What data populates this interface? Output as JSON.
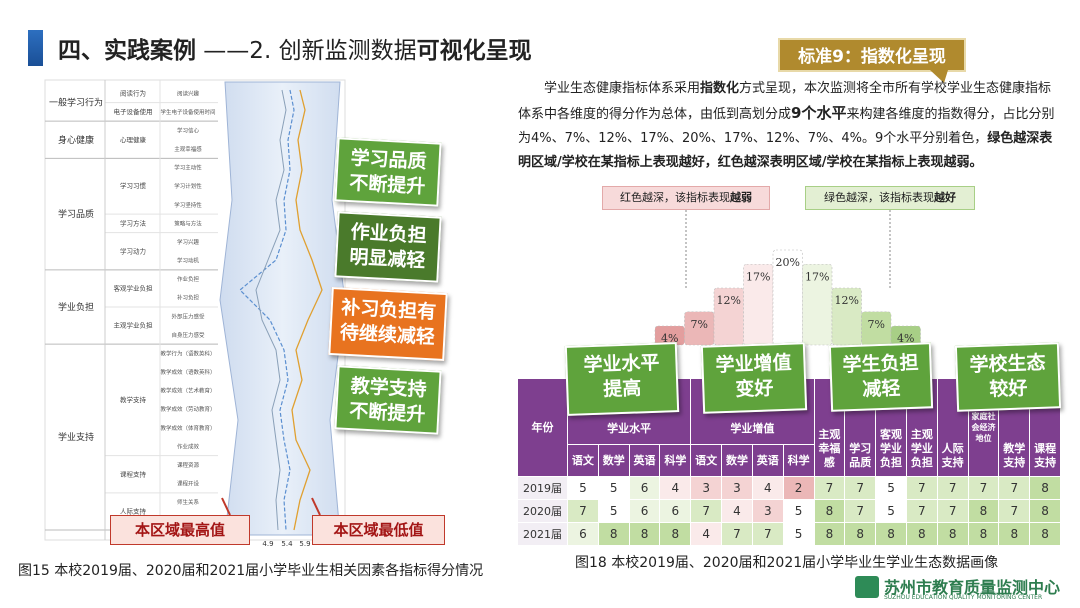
{
  "header": {
    "title_parts": [
      "四、实践案例",
      " ——2. 创新监测数据",
      "可视化呈现"
    ]
  },
  "left_panel": {
    "groups": [
      {
        "name": "一般学习行为",
        "subgroups": [
          {
            "name": "阅读行为",
            "items": [
              "阅读兴趣"
            ]
          },
          {
            "name": "电子设备使用",
            "items": [
              "学生电子设备使用时间"
            ]
          }
        ]
      },
      {
        "name": "身心健康",
        "subgroups": [
          {
            "name": "心理健康",
            "items": [
              "学习信心",
              "主观幸福感"
            ]
          }
        ]
      },
      {
        "name": "学习品质",
        "subgroups": [
          {
            "name": "学习习惯",
            "items": [
              "学习主动性",
              "学习计划性",
              "学习坚持性"
            ]
          },
          {
            "name": "学习方法",
            "items": [
              "策略与方法"
            ]
          },
          {
            "name": "学习动力",
            "items": [
              "学习兴趣",
              "学习动机"
            ]
          }
        ]
      },
      {
        "name": "学业负担",
        "subgroups": [
          {
            "name": "客观学业负担",
            "items": [
              "作业负担",
              "补习负担"
            ]
          },
          {
            "name": "主观学业负担",
            "items": [
              "外部压力感受",
              "自身压力感受"
            ]
          }
        ]
      },
      {
        "name": "学业支持",
        "subgroups": [
          {
            "name": "教学支持",
            "items": [
              "教学行为（语数英科）",
              "教学成效（语数英科）",
              "教学成效（艺术教育）",
              "教学成效（劳动教育）",
              "教学成效（体育教育）",
              "作业成效"
            ]
          },
          {
            "name": "课程支持",
            "items": [
              "课程资源",
              "课程开设"
            ]
          },
          {
            "name": "人际支持",
            "items": [
              "师生关系",
              "同伴关系"
            ]
          }
        ]
      }
    ],
    "x_ticks": [
      4.9,
      5.4,
      5.9
    ],
    "callouts": [
      [
        "学习品质",
        "不断提升"
      ],
      [
        "作业负担",
        "明显减轻"
      ],
      [
        "补习负担有",
        "待继续减轻"
      ],
      [
        "教学支持",
        "不断提升"
      ]
    ],
    "range_labels": [
      "本区域最高值",
      "本区域最低值"
    ],
    "caption": "图15  本校2019届、2020届和2021届小学毕业生相关因素各指标得分情况"
  },
  "right_panel": {
    "tag": "标准9：指数化呈现",
    "paragraph": [
      {
        "text": "学业生态健康指标体系采用",
        "bold": false
      },
      {
        "text": "指数化",
        "bold": true
      },
      {
        "text": "方式呈现，本次监测将全市所有学校学业生态健康指标体系中各维度的得分作为总体，由低到高划分成",
        "bold": false
      },
      {
        "text": "9个水平",
        "bold": true
      },
      {
        "text": "来构建各维度的指数得分，占比分别为4%、7%、12%、17%、20%、17%、12%、7%、4%。9个水平分别着色，",
        "bold": false
      },
      {
        "text": "绿色越深表明区域/学校在某指标上表现越好，红色越深表明区域/学校在某指标上表现越弱。",
        "bold": true
      }
    ],
    "legend_weak": [
      "红色越深，该指标表现",
      "越弱"
    ],
    "legend_good": [
      "绿色越深，该指标表现",
      "越好"
    ],
    "distribution": {
      "values": [
        4,
        7,
        12,
        17,
        20,
        17,
        12,
        7,
        4
      ],
      "value_labels": [
        "4%",
        "7%",
        "12%",
        "17%",
        "20%",
        "17%",
        "12%",
        "7%",
        "4%"
      ]
    },
    "level_colors": [
      "#e39e9e",
      "#ebb7b7",
      "#f4d3d3",
      "#faeaea",
      "#ffffff",
      "#ecf4e1",
      "#d9eac4",
      "#c1dda2",
      "#a8cf86"
    ],
    "table": {
      "year_header": "年份",
      "groups": [
        {
          "name": "学业水平",
          "columns": [
            "语文",
            "数学",
            "英语",
            "科学"
          ]
        },
        {
          "name": "学业增值",
          "columns": [
            "语文",
            "数学",
            "英语",
            "科学"
          ]
        }
      ],
      "single_columns": [
        "主观幸福感",
        "学习品质",
        "客观学业负担",
        "主观学业负担",
        "人际支持",
        "家庭社会经济地位",
        "教学支持",
        "课程支持"
      ],
      "rows": [
        {
          "year": "2019届",
          "values": [
            5,
            5,
            6,
            4,
            3,
            3,
            4,
            2,
            7,
            7,
            5,
            7,
            7,
            7,
            7,
            8
          ]
        },
        {
          "year": "2020届",
          "values": [
            7,
            5,
            6,
            6,
            7,
            4,
            3,
            5,
            8,
            7,
            5,
            7,
            7,
            8,
            7,
            8
          ]
        },
        {
          "year": "2021届",
          "values": [
            6,
            8,
            8,
            8,
            4,
            7,
            7,
            5,
            8,
            8,
            8,
            8,
            8,
            8,
            8,
            8
          ]
        }
      ]
    },
    "callouts": [
      [
        "学业水平",
        "提高"
      ],
      [
        "学业增值",
        "变好"
      ],
      [
        "学生负担",
        "减轻"
      ],
      [
        "学校生态",
        "较好"
      ]
    ],
    "caption": "图18  本校2019届、2020届和2021届小学毕业生学业生态数据画像"
  },
  "footer": {
    "org": "苏州市教育质量监测中心",
    "org_en": "SUZHOU EDUCATION QUALITY MONITORING CENTER"
  }
}
